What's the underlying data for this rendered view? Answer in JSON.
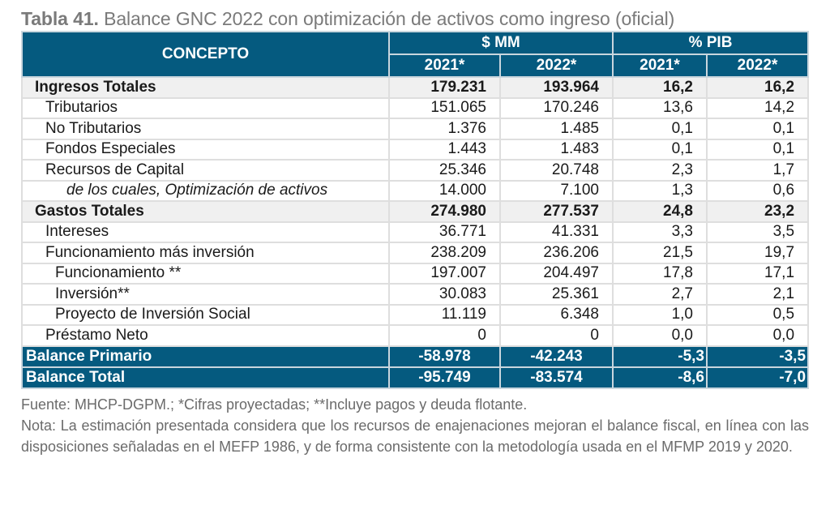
{
  "title": {
    "label": "Tabla 41.",
    "text": " Balance GNC 2022 con optimización de activos como ingreso (oficial)"
  },
  "table": {
    "header": {
      "concepto": "CONCEPTO",
      "group_mm": "$ MM",
      "group_pib": "% PIB",
      "years": [
        "2021*",
        "2022*",
        "2021*",
        "2022*"
      ]
    },
    "rows": [
      {
        "label": "Ingresos Totales",
        "type": "total",
        "values": [
          "179.231",
          "193.964",
          "16,2",
          "16,2"
        ]
      },
      {
        "label": "Tributarios",
        "type": "item",
        "indent": 1,
        "values": [
          "151.065",
          "170.246",
          "13,6",
          "14,2"
        ]
      },
      {
        "label": "No Tributarios",
        "type": "item",
        "indent": 1,
        "values": [
          "1.376",
          "1.485",
          "0,1",
          "0,1"
        ]
      },
      {
        "label": "Fondos Especiales",
        "type": "item",
        "indent": 1,
        "values": [
          "1.443",
          "1.483",
          "0,1",
          "0,1"
        ]
      },
      {
        "label": "Recursos de Capital",
        "type": "item",
        "indent": 1,
        "values": [
          "25.346",
          "20.748",
          "2,3",
          "1,7"
        ]
      },
      {
        "label": "de los cuales, Optimización de activos",
        "type": "item",
        "indent": 3,
        "values": [
          "14.000",
          "7.100",
          "1,3",
          "0,6"
        ]
      },
      {
        "label": "Gastos Totales",
        "type": "total",
        "values": [
          "274.980",
          "277.537",
          "24,8",
          "23,2"
        ]
      },
      {
        "label": "Intereses",
        "type": "item",
        "indent": 1,
        "values": [
          "36.771",
          "41.331",
          "3,3",
          "3,5"
        ]
      },
      {
        "label": "Funcionamiento más inversión",
        "type": "item",
        "indent": 1,
        "values": [
          "238.209",
          "236.206",
          "21,5",
          "19,7"
        ]
      },
      {
        "label": "Funcionamiento **",
        "type": "item",
        "indent": 2,
        "values": [
          "197.007",
          "204.497",
          "17,8",
          "17,1"
        ]
      },
      {
        "label": "Inversión**",
        "type": "item",
        "indent": 2,
        "values": [
          "30.083",
          "25.361",
          "2,7",
          "2,1"
        ]
      },
      {
        "label": "Proyecto de Inversión Social",
        "type": "item",
        "indent": 2,
        "values": [
          "11.119",
          "6.348",
          "1,0",
          "0,5"
        ]
      },
      {
        "label": "Préstamo Neto",
        "type": "item",
        "indent": 1,
        "values": [
          "0",
          "0",
          "0,0",
          "0,0"
        ]
      },
      {
        "label": "Balance Primario",
        "type": "balance",
        "values": [
          "-58.978",
          "-42.243",
          "-5,3",
          "-3,5"
        ]
      },
      {
        "label": "Balance Total",
        "type": "balance",
        "values": [
          "-95.749",
          "-83.574",
          "-8,6",
          "-7,0"
        ]
      }
    ]
  },
  "notes": {
    "source": "Fuente: MHCP-DGPM.; *Cifras proyectadas; **Incluye pagos y deuda flotante.",
    "note": "Nota: La estimación presentada considera que los recursos de enajenaciones mejoran el balance fiscal, en línea con las disposiciones señaladas en el MEFP 1986, y de forma consistente con la metodología usada en el MFMP 2019 y 2020."
  },
  "colors": {
    "header_bg": "#055a7f",
    "header_text": "#ffffff",
    "total_row_bg": "#f0f0f0",
    "title_text": "#7a7a7a"
  }
}
